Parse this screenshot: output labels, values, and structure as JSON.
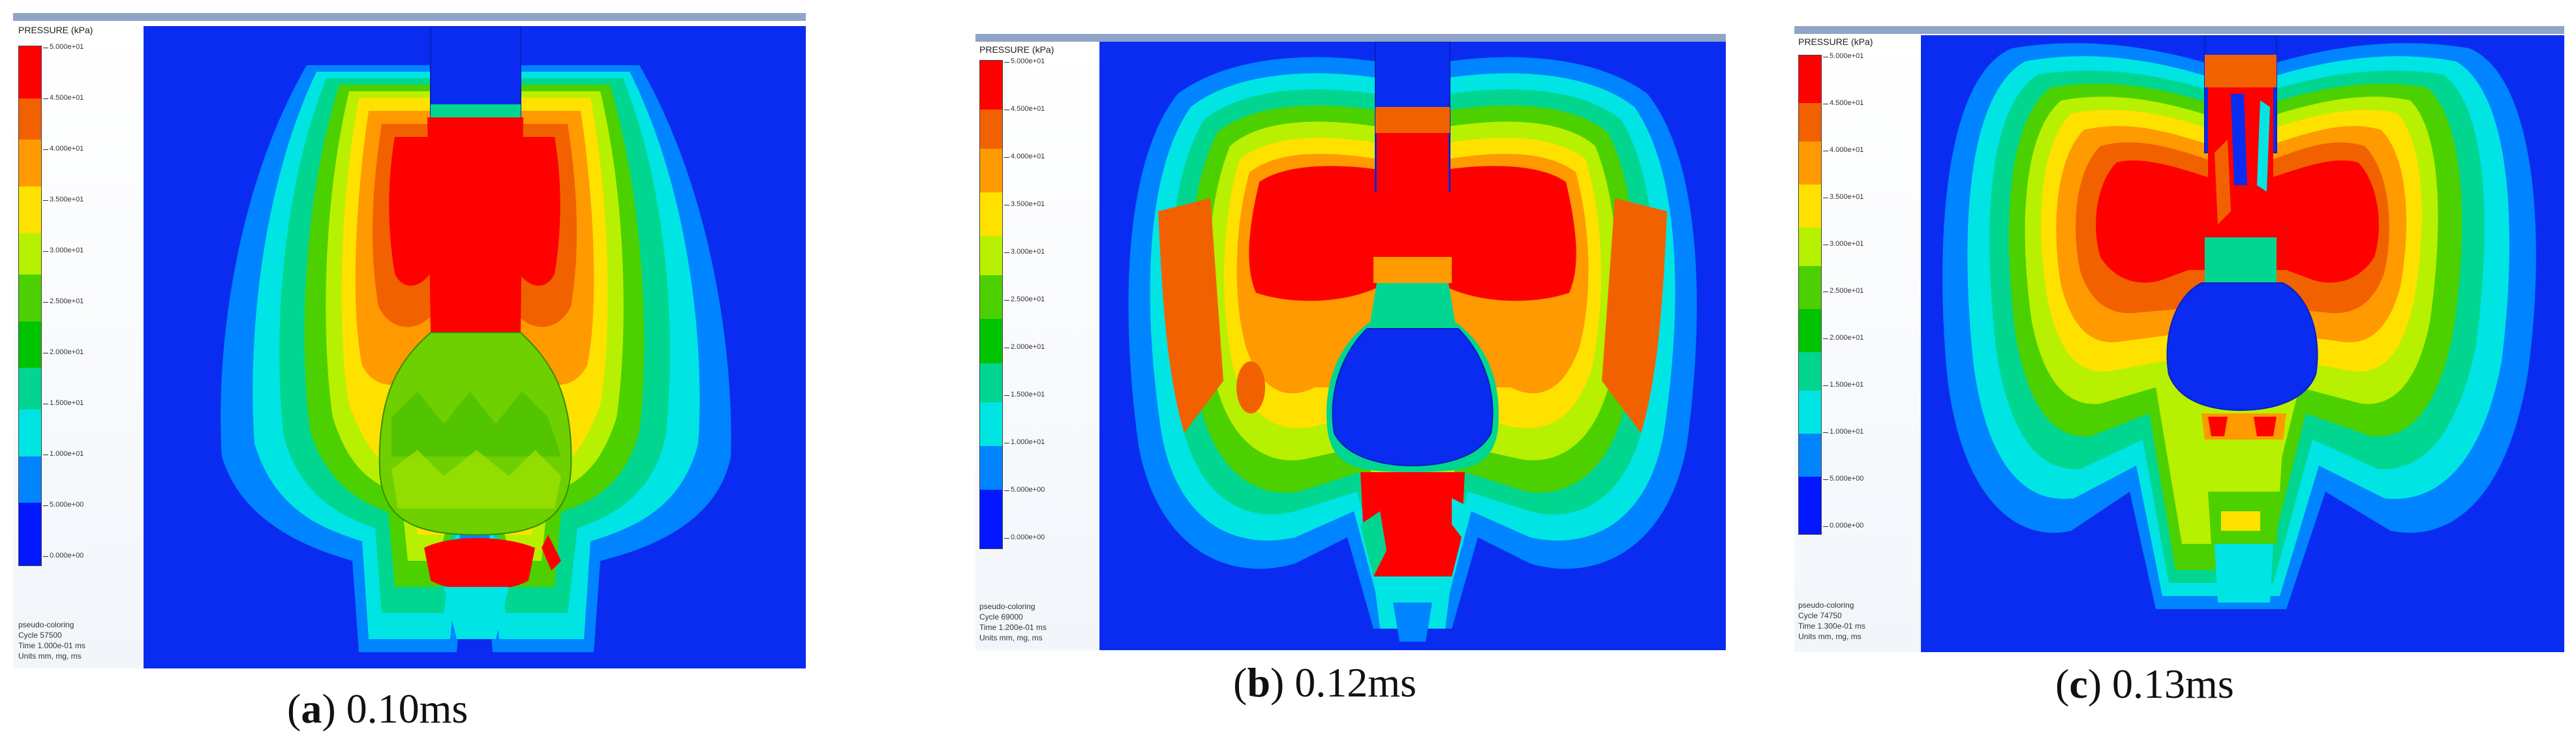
{
  "legend_colors": [
    "#ff0000",
    "#f26100",
    "#ff9a00",
    "#ffe100",
    "#b7f000",
    "#4cd000",
    "#00c300",
    "#00d690",
    "#00e4e4",
    "#0084ff",
    "#0017ff",
    "#1200d0"
  ],
  "panels": [
    {
      "caption_letter": "a",
      "caption_time": "0.10ms",
      "legend_title": "PRESSURE (kPa)",
      "legend_ticks": [
        "5.000e+01",
        "4.500e+01",
        "4.000e+01",
        "3.500e+01",
        "3.000e+01",
        "2.500e+01",
        "2.000e+01",
        "1.500e+01",
        "1.000e+01",
        "5.000e+00",
        "0.000e+00"
      ],
      "info_lines": [
        "pseudo-coloring",
        "Cycle 57500",
        "Time 1.000e-01 ms",
        "Units mm, mg, ms"
      ]
    },
    {
      "caption_letter": "b",
      "caption_time": "0.12ms",
      "legend_title": "PRESSURE (kPa)",
      "legend_ticks": [
        "5.000e+01",
        "4.500e+01",
        "4.000e+01",
        "3.500e+01",
        "3.000e+01",
        "2.500e+01",
        "2.000e+01",
        "1.500e+01",
        "1.000e+01",
        "5.000e+00",
        "0.000e+00"
      ],
      "info_lines": [
        "pseudo-coloring",
        "Cycle 69000",
        "Time 1.200e-01 ms",
        "Units mm, mg, ms"
      ]
    },
    {
      "caption_letter": "c",
      "caption_time": "0.13ms",
      "legend_title": "PRESSURE (kPa)",
      "legend_ticks": [
        "5.000e+01",
        "4.500e+01",
        "4.000e+01",
        "3.500e+01",
        "3.000e+01",
        "2.500e+01",
        "2.000e+01",
        "1.500e+01",
        "1.000e+01",
        "5.000e+00",
        "0.000e+00"
      ],
      "info_lines": [
        "pseudo-coloring",
        "Cycle 74750",
        "Time 1.300e-01 ms",
        "Units mm, mg, ms"
      ]
    }
  ]
}
